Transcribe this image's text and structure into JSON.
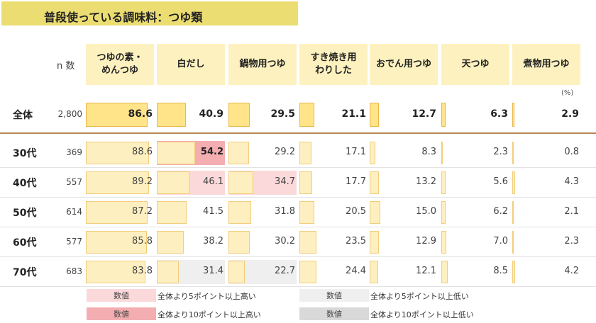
{
  "title": "普段使っている調味料：つゆ類",
  "n_label": "n 数",
  "unit": "(%)",
  "colors": {
    "title_bg": "#ecdd73",
    "header_bg": "#fdf1bf",
    "bar_fill": "#fdefbf",
    "bar_border": "#f2cd7a",
    "total_bar_fill": "#ffe48a",
    "high5": "#fbd8d9",
    "high10": "#f4aeb2",
    "low5": "#efefef",
    "low10": "#d9d9d9"
  },
  "legend": [
    {
      "swatch": "数値",
      "text": "全体より5ポイント以上高い",
      "color": "#fbd8d9"
    },
    {
      "swatch": "数値",
      "text": "全体より10ポイント以上高い",
      "color": "#f4aeb2"
    },
    {
      "swatch": "数値",
      "text": "全体より5ポイント以上低い",
      "color": "#efefef"
    },
    {
      "swatch": "数値",
      "text": "全体より10ポイント以上低い",
      "color": "#d9d9d9"
    }
  ],
  "chart_data": {
    "type": "bar",
    "title": "普段使っている調味料：つゆ類",
    "unit": "(%)",
    "categories": [
      "つゆの素・\nめんつゆ",
      "白だし",
      "鍋物用つゆ",
      "すき焼き用\nわりした",
      "おでん用つゆ",
      "天つゆ",
      "煮物用つゆ"
    ],
    "rows": [
      {
        "label": "全体",
        "n": "2,800",
        "values": [
          86.6,
          40.9,
          29.5,
          21.1,
          12.7,
          6.3,
          2.9
        ],
        "total": true,
        "hl": [
          "",
          "",
          "",
          "",
          "",
          "",
          ""
        ]
      },
      {
        "label": "30代",
        "n": "369",
        "values": [
          88.6,
          54.2,
          29.2,
          17.1,
          8.3,
          2.3,
          0.8
        ],
        "hl": [
          "",
          "high10",
          "",
          "",
          "",
          "",
          ""
        ]
      },
      {
        "label": "40代",
        "n": "557",
        "values": [
          89.2,
          46.1,
          34.7,
          17.7,
          13.2,
          5.6,
          4.3
        ],
        "hl": [
          "",
          "high5",
          "high5",
          "",
          "",
          "",
          ""
        ]
      },
      {
        "label": "50代",
        "n": "614",
        "values": [
          87.2,
          41.5,
          31.8,
          20.5,
          15.0,
          6.2,
          2.1
        ],
        "hl": [
          "",
          "",
          "",
          "",
          "",
          "",
          ""
        ]
      },
      {
        "label": "60代",
        "n": "577",
        "values": [
          85.8,
          38.2,
          30.2,
          23.5,
          12.9,
          7.0,
          2.3
        ],
        "hl": [
          "",
          "",
          "",
          "",
          "",
          "",
          ""
        ]
      },
      {
        "label": "70代",
        "n": "683",
        "values": [
          83.8,
          31.4,
          22.7,
          24.4,
          12.1,
          8.5,
          4.2
        ],
        "hl": [
          "",
          "low5",
          "low5",
          "",
          "",
          "",
          ""
        ]
      }
    ]
  }
}
